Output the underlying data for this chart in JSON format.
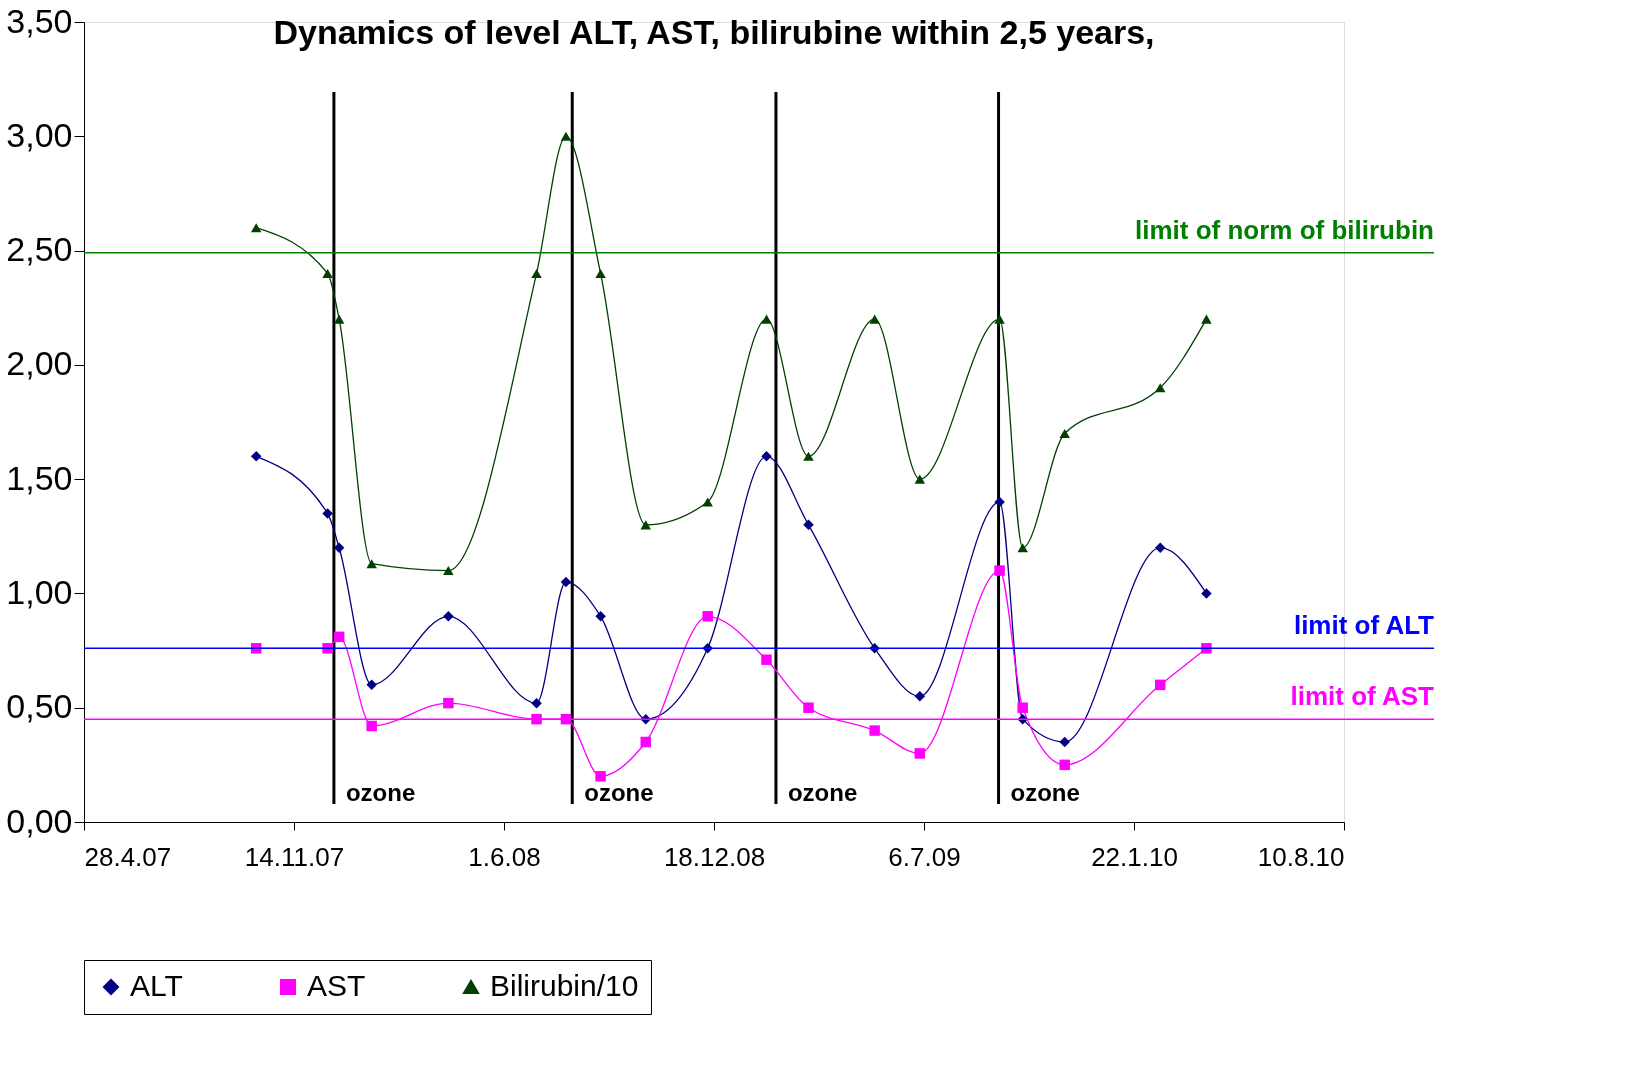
{
  "chart_data": {
    "type": "line",
    "title": "Dynamics of level ALT, AST, bilirubine within 2,5 years,",
    "x": [
      "2007-10-09",
      "2007-12-16",
      "2007-12-27",
      "2008-01-27",
      "2008-04-09",
      "2008-07-02",
      "2008-07-30",
      "2008-09-01",
      "2008-10-14",
      "2008-12-12",
      "2009-02-06",
      "2009-03-18",
      "2009-05-20",
      "2009-07-02",
      "2009-09-16",
      "2009-10-08",
      "2009-11-17",
      "2010-02-16",
      "2010-04-01"
    ],
    "series": [
      {
        "name": "ALT",
        "color": "#000080",
        "marker": "diamond",
        "values": [
          1.6,
          1.35,
          1.2,
          0.6,
          0.9,
          0.52,
          1.05,
          0.9,
          0.45,
          0.76,
          1.6,
          1.3,
          0.76,
          0.55,
          1.4,
          0.45,
          0.35,
          1.2,
          1.0
        ]
      },
      {
        "name": "AST",
        "color": "#ff00ff",
        "marker": "square",
        "values": [
          0.76,
          0.76,
          0.81,
          0.42,
          0.52,
          0.45,
          0.45,
          0.2,
          0.35,
          0.9,
          0.71,
          0.5,
          0.4,
          0.3,
          1.1,
          0.5,
          0.25,
          0.6,
          0.76
        ]
      },
      {
        "name": "Bilirubin/10",
        "color": "#004000",
        "marker": "triangle",
        "values": [
          2.6,
          2.4,
          2.2,
          1.13,
          1.1,
          2.4,
          3.0,
          2.4,
          1.3,
          1.4,
          2.2,
          1.6,
          2.2,
          1.5,
          2.2,
          1.2,
          1.7,
          1.9,
          2.2
        ]
      }
    ],
    "xlim": [
      "2007-04-28",
      "2010-08-10"
    ],
    "xticks": [
      {
        "value": "2007-04-28",
        "label": "28.4.07"
      },
      {
        "value": "2007-11-14",
        "label": "14.11.07"
      },
      {
        "value": "2008-06-01",
        "label": "1.6.08"
      },
      {
        "value": "2008-12-18",
        "label": "18.12.08"
      },
      {
        "value": "2009-07-06",
        "label": "6.7.09"
      },
      {
        "value": "2010-01-22",
        "label": "22.1.10"
      },
      {
        "value": "2010-08-10",
        "label": "10.8.10"
      }
    ],
    "ylim": [
      0,
      3.5
    ],
    "yticks": [
      {
        "value": 0,
        "label": "0,00"
      },
      {
        "value": 0.5,
        "label": "0,50"
      },
      {
        "value": 1,
        "label": "1,00"
      },
      {
        "value": 1.5,
        "label": "1,50"
      },
      {
        "value": 2,
        "label": "2,00"
      },
      {
        "value": 2.5,
        "label": "2,50"
      },
      {
        "value": 3,
        "label": "3,00"
      },
      {
        "value": 3.5,
        "label": "3,50"
      }
    ],
    "ref_lines": [
      {
        "axis": "y",
        "value": 2.49,
        "label": "limit of norm of bilirubin",
        "color": "#008000"
      },
      {
        "axis": "y",
        "value": 0.76,
        "label": "limit of ALT",
        "color": "#0000ff"
      },
      {
        "axis": "y",
        "value": 0.45,
        "label": "limit of AST",
        "color": "#ff00ff"
      },
      {
        "axis": "x",
        "value": "2007-12-22",
        "label": "ozone",
        "color": "#000000"
      },
      {
        "axis": "x",
        "value": "2008-08-05",
        "label": "ozone",
        "color": "#000000"
      },
      {
        "axis": "x",
        "value": "2009-02-15",
        "label": "ozone",
        "color": "#000000"
      },
      {
        "axis": "x",
        "value": "2009-09-15",
        "label": "ozone",
        "color": "#000000"
      }
    ],
    "grid": false,
    "legend": "bottom",
    "line_style": "solid"
  }
}
